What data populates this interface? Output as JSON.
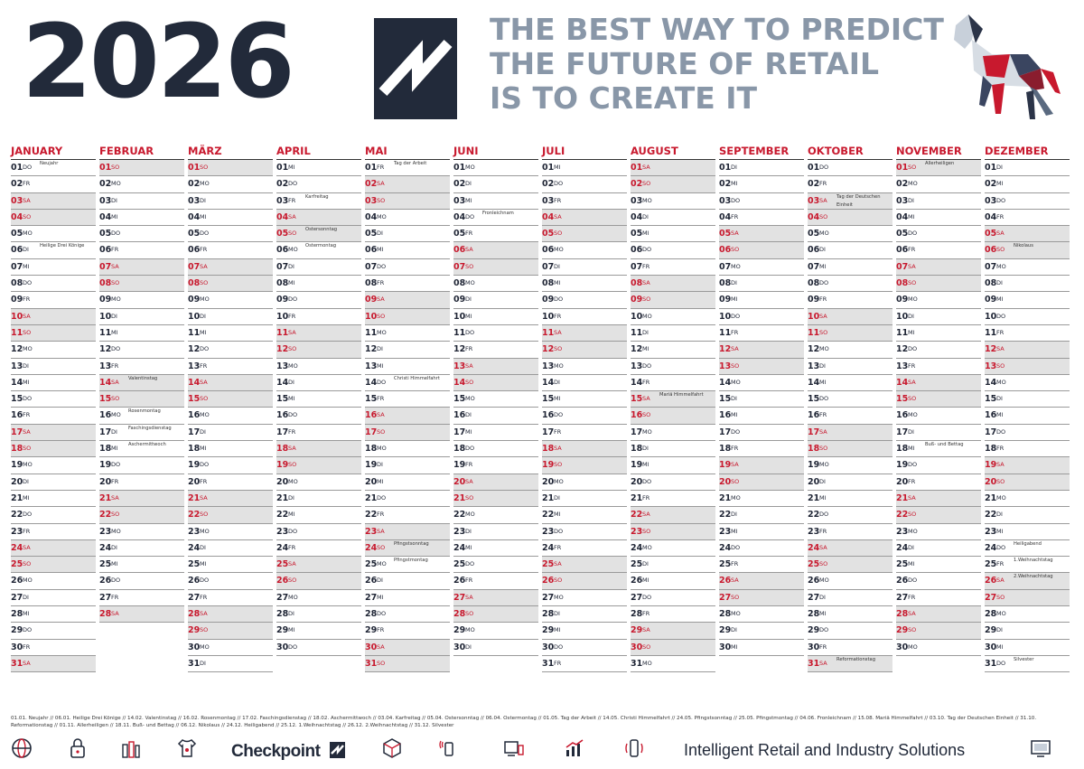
{
  "header": {
    "year": "2026",
    "tagline": [
      "THE BEST WAY TO PREDICT",
      "THE FUTURE OF RETAIL",
      "IS TO CREATE IT"
    ]
  },
  "colors": {
    "navy": "#222a3a",
    "red": "#c8192e",
    "grey": "#8997a8",
    "weekend": "#e2e2e2"
  },
  "months": [
    {
      "name": "JANUARY",
      "start": 4,
      "len": 31,
      "notes": {
        "1": "Neujahr",
        "6": "Heilige Drei Könige"
      },
      "kw": {}
    },
    {
      "name": "FEBRUAR",
      "start": 0,
      "len": 28,
      "notes": {
        "14": "Valentinstag",
        "16": "Rosenmontag",
        "17": "Faschingsdienstag",
        "18": "Aschermittwoch"
      },
      "kw": {}
    },
    {
      "name": "MÄRZ",
      "start": 0,
      "len": 31,
      "notes": {},
      "kw": {}
    },
    {
      "name": "APRIL",
      "start": 3,
      "len": 30,
      "notes": {
        "3": "Karfreitag",
        "5": "Ostersonntag",
        "6": "Ostermontag"
      },
      "kw": {}
    },
    {
      "name": "MAI",
      "start": 5,
      "len": 31,
      "notes": {
        "1": "Tag der Arbeit",
        "14": "Christi Himmelfahrt",
        "24": "Pfingstsonntag",
        "25": "Pfingstmontag"
      },
      "kw": {}
    },
    {
      "name": "JUNI",
      "start": 1,
      "len": 30,
      "notes": {
        "4": "Fronleichnam"
      },
      "kw": {}
    },
    {
      "name": "JULI",
      "start": 3,
      "len": 31,
      "notes": {},
      "kw": {}
    },
    {
      "name": "AUGUST",
      "start": 6,
      "len": 31,
      "notes": {
        "15": "Mariä Himmelfahrt"
      },
      "kw": {}
    },
    {
      "name": "SEPTEMBER",
      "start": 2,
      "len": 30,
      "notes": {},
      "kw": {}
    },
    {
      "name": "OKTOBER",
      "start": 4,
      "len": 31,
      "notes": {
        "3": "Tag der Deutschen Einheit",
        "31": "Reformationstag"
      },
      "kw": {}
    },
    {
      "name": "NOVEMBER",
      "start": 0,
      "len": 30,
      "notes": {
        "1": "Allerheiligen",
        "18": "Buß- und Bettag"
      },
      "kw": {}
    },
    {
      "name": "DEZEMBER",
      "start": 2,
      "len": 31,
      "notes": {
        "6": "Nikolaus",
        "24": "Heiligabend",
        "25": "1.Weihnachtstag",
        "26": "2.Weihnachtstag",
        "31": "Silvester"
      },
      "kw": {}
    }
  ],
  "weekday_abbr": [
    "SO",
    "MO",
    "DI",
    "MI",
    "DO",
    "FR",
    "SA"
  ],
  "footnote": "01.01. Neujahr // 06.01. Heilige Drei Könige // 14.02. Valentinstag // 16.02. Rosenmontag // 17.02. Faschingsdienstag // 18.02. Aschermittwoch // 03.04. Karfreitag // 05.04. Ostersonntag // 06.04. Ostermontag // 01.05. Tag der Arbeit // 14.05. Christi Himmelfahrt // 24.05. Pfingstsonntag // 25.05. Pfingstmontag // 04.06. Fronleichnam // 15.08. Mariä Himmelfahrt // 03.10. Tag der Deutschen Einheit // 31.10. Reformationstag // 01.11. Allerheiligen // 18.11. Buß- und Bettag // 06.12. Nikolaus // 24.12. Heiligabend // 25.12. 1.Weihnachtstag // 26.12. 2.Weihnachtstag // 31.12. Silvester",
  "footer": {
    "brand": "Checkpoint",
    "slogan": "Intelligent Retail and Industry Solutions",
    "icons": [
      "globe-icon",
      "lock-icon",
      "bottles-icon",
      "shirt-icon",
      "brand-logo",
      "box-icon",
      "rfid-hand-icon",
      "devices-icon",
      "chart-icon",
      "rfid-tag-icon",
      "monitor-icon"
    ]
  }
}
